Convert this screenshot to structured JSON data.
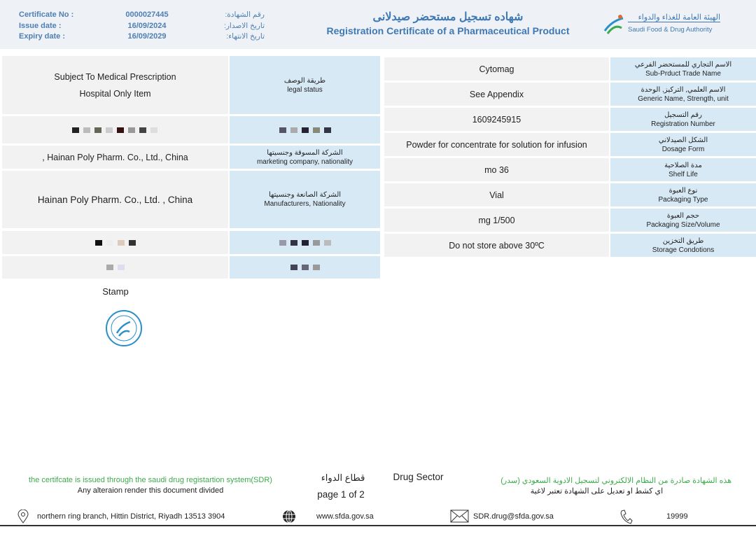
{
  "header": {
    "certificate_no_label": "Certificate No :",
    "certificate_no": "0000027445",
    "certificate_no_ar": "رقم الشهادة:",
    "issue_date_label": "Issue date :",
    "issue_date": "16/09/2024",
    "issue_date_ar": "تاريخ الاصدار:",
    "expiry_date_label": "Expiry date :",
    "expiry_date": "16/09/2029",
    "expiry_date_ar": "تاريخ الانتهاء:",
    "title_ar": "شهاده تسجيل مستحضر صيدلانى",
    "title_en": "Registration Certificate of a Pharmaceutical Product",
    "authority_ar": "الهيئة العامة للغذاء والدواء",
    "authority_en": "Saudi Food & Drug Authority"
  },
  "left_table": [
    {
      "value": [
        "Subject To Medical Prescription",
        "Hospital Only Item"
      ],
      "label_ar": "طريقة الوصف",
      "label_en": "legal status"
    },
    {
      "value": [
        ", Hainan Poly Pharm. Co., Ltd., China"
      ],
      "label_ar": "الشركة المسوقة وجنسيتها",
      "label_en": "marketing company, nationality"
    },
    {
      "value": [
        "Hainan Poly Pharm. Co., Ltd. , China"
      ],
      "label_ar": "الشركة الصانعة وجنسيتها",
      "label_en": "Manufacturers, Nationality"
    }
  ],
  "right_table": [
    {
      "value": "Cytomag",
      "label_ar": "الاسم التجاري للمستحضر الفرعي",
      "label_en": "Sub-Prduct Trade Name"
    },
    {
      "value": "See Appendix",
      "label_ar": "الاسم العلمي, التركيز, الوحدة",
      "label_en": "Generic Name, Strength, unit"
    },
    {
      "value": "1609245915",
      "label_ar": "رقم التسجيل",
      "label_en": "Registration Number"
    },
    {
      "value": "Powder for concentrate for solution for infusion",
      "label_ar": "الشكل الصيدلاني",
      "label_en": "Dosage Form"
    },
    {
      "value": "mo 36",
      "label_ar": "مدة الصلاحية",
      "label_en": "Shelf Life"
    },
    {
      "value": "Vial",
      "label_ar": "نوع العبوة",
      "label_en": "Packaging Type"
    },
    {
      "value": "mg 1/500",
      "label_ar": "حجم العبوة",
      "label_en": "Packaging Size/Volume"
    },
    {
      "value": "Do not store above 30ºC",
      "label_ar": "طريق التخزين",
      "label_en": "Storage Condotions"
    }
  ],
  "stamp_label": "Stamp",
  "footer": {
    "sdr_en": "the certifcate is issued through the saudi drug registartion system(SDR)",
    "alteration_en": "Any alteraion render this document divided",
    "sector_ar": "قطاع الدواء",
    "sector_en": "Drug Sector",
    "page": "page 1 of 2",
    "sdr_ar": "هذه الشهادة صادرة من النظام الالكتروني لتسجيل الادوية السعودي (سدر)",
    "alteration_ar": "اي كشط او تعديل على الشهادة تعتبر لاغية",
    "address": "northern ring branch, Hittin District, Riyadh 13513 3904",
    "website": "www.sfda.gov.sa",
    "email": "SDR.drug@sfda.gov.sa",
    "phone": "19999"
  },
  "colors": {
    "header_text": "#4f7fb3",
    "label_bg": "#d8e9f6",
    "value_bg": "#f2f2f2",
    "green": "#3cab4a"
  }
}
